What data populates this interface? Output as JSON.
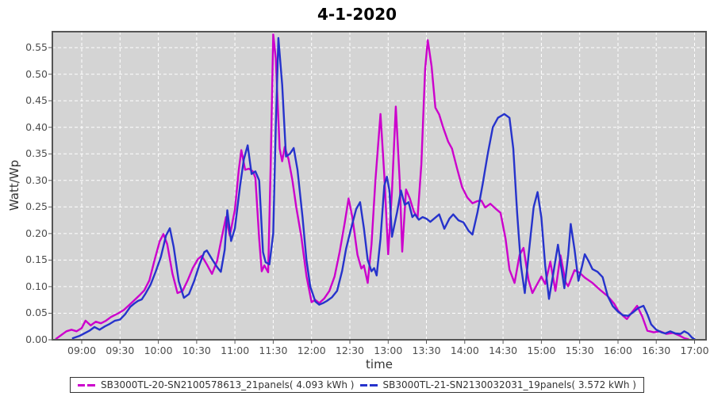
{
  "chart_data": {
    "type": "line",
    "title": "4-1-2020",
    "plot_background": "#d4d4d4",
    "grid": {
      "on": true,
      "color": "#ffffff",
      "style": "dashed"
    },
    "legend_position": "bottom-center",
    "x_axis": {
      "label": "time",
      "tick_labels": [
        "09:00",
        "09:30",
        "10:00",
        "10:30",
        "11:00",
        "11:30",
        "12:00",
        "12:30",
        "13:00",
        "13:30",
        "14:00",
        "14:30",
        "15:00",
        "15:30",
        "16:00",
        "16:30",
        "17:00"
      ],
      "domain_minutes": [
        517,
        1029
      ]
    },
    "y_axis": {
      "label": "Watt/Wp",
      "tick_labels": [
        "0.00",
        "0.05",
        "0.10",
        "0.15",
        "0.20",
        "0.25",
        "0.30",
        "0.35",
        "0.40",
        "0.45",
        "0.50",
        "0.55"
      ],
      "domain": [
        0,
        0.58
      ],
      "tick_step": 0.05
    },
    "series": [
      {
        "label": "SB3000TL-20-SN2100578613_21panels( 4.093 kWh )",
        "name": "SB3000TL-20-SN2100578613_21panels",
        "kwh": 4.093,
        "color": "#cc00cc",
        "points": [
          [
            "08:40",
            0.002
          ],
          [
            "08:44",
            0.009
          ],
          [
            "08:48",
            0.016
          ],
          [
            "08:52",
            0.019
          ],
          [
            "08:56",
            0.016
          ],
          [
            "09:00",
            0.022
          ],
          [
            "09:03",
            0.036
          ],
          [
            "09:07",
            0.027
          ],
          [
            "09:11",
            0.034
          ],
          [
            "09:15",
            0.031
          ],
          [
            "09:19",
            0.036
          ],
          [
            "09:23",
            0.043
          ],
          [
            "09:28",
            0.049
          ],
          [
            "09:33",
            0.056
          ],
          [
            "09:37",
            0.065
          ],
          [
            "09:41",
            0.074
          ],
          [
            "09:45",
            0.083
          ],
          [
            "09:49",
            0.093
          ],
          [
            "09:53",
            0.112
          ],
          [
            "09:57",
            0.15
          ],
          [
            "10:01",
            0.185
          ],
          [
            "10:04",
            0.199
          ],
          [
            "10:07",
            0.18
          ],
          [
            "10:11",
            0.125
          ],
          [
            "10:15",
            0.088
          ],
          [
            "10:19",
            0.092
          ],
          [
            "10:23",
            0.112
          ],
          [
            "10:27",
            0.135
          ],
          [
            "10:31",
            0.152
          ],
          [
            "10:34",
            0.158
          ],
          [
            "10:38",
            0.142
          ],
          [
            "10:42",
            0.124
          ],
          [
            "10:46",
            0.148
          ],
          [
            "10:50",
            0.196
          ],
          [
            "10:53",
            0.231
          ],
          [
            "10:56",
            0.196
          ],
          [
            "11:00",
            0.245
          ],
          [
            "11:03",
            0.32
          ],
          [
            "11:05",
            0.357
          ],
          [
            "11:08",
            0.32
          ],
          [
            "11:11",
            0.322
          ],
          [
            "11:14",
            0.317
          ],
          [
            "11:16",
            0.305
          ],
          [
            "11:19",
            0.19
          ],
          [
            "11:21",
            0.129
          ],
          [
            "11:23",
            0.14
          ],
          [
            "11:26",
            0.127
          ],
          [
            "11:28",
            0.33
          ],
          [
            "11:30",
            0.575
          ],
          [
            "11:32",
            0.53
          ],
          [
            "11:35",
            0.36
          ],
          [
            "11:37",
            0.336
          ],
          [
            "11:39",
            0.363
          ],
          [
            "11:42",
            0.34
          ],
          [
            "11:45",
            0.3
          ],
          [
            "11:48",
            0.25
          ],
          [
            "11:52",
            0.194
          ],
          [
            "11:56",
            0.12
          ],
          [
            "12:00",
            0.071
          ],
          [
            "12:03",
            0.075
          ],
          [
            "12:06",
            0.069
          ],
          [
            "12:10",
            0.078
          ],
          [
            "12:14",
            0.092
          ],
          [
            "12:18",
            0.119
          ],
          [
            "12:22",
            0.165
          ],
          [
            "12:26",
            0.22
          ],
          [
            "12:29",
            0.266
          ],
          [
            "12:32",
            0.23
          ],
          [
            "12:36",
            0.16
          ],
          [
            "12:39",
            0.134
          ],
          [
            "12:41",
            0.14
          ],
          [
            "12:44",
            0.107
          ],
          [
            "12:47",
            0.18
          ],
          [
            "12:50",
            0.3
          ],
          [
            "12:54",
            0.425
          ],
          [
            "12:57",
            0.31
          ],
          [
            "13:00",
            0.161
          ],
          [
            "13:03",
            0.28
          ],
          [
            "13:06",
            0.439
          ],
          [
            "13:09",
            0.3
          ],
          [
            "13:11",
            0.166
          ],
          [
            "13:14",
            0.283
          ],
          [
            "13:17",
            0.266
          ],
          [
            "13:20",
            0.242
          ],
          [
            "13:23",
            0.229
          ],
          [
            "13:26",
            0.33
          ],
          [
            "13:29",
            0.51
          ],
          [
            "13:31",
            0.564
          ],
          [
            "13:34",
            0.515
          ],
          [
            "13:37",
            0.437
          ],
          [
            "13:40",
            0.424
          ],
          [
            "13:43",
            0.4
          ],
          [
            "13:47",
            0.373
          ],
          [
            "13:50",
            0.36
          ],
          [
            "13:54",
            0.322
          ],
          [
            "13:58",
            0.287
          ],
          [
            "14:02",
            0.268
          ],
          [
            "14:06",
            0.257
          ],
          [
            "14:10",
            0.261
          ],
          [
            "14:13",
            0.262
          ],
          [
            "14:16",
            0.249
          ],
          [
            "14:20",
            0.256
          ],
          [
            "14:24",
            0.247
          ],
          [
            "14:28",
            0.239
          ],
          [
            "14:32",
            0.19
          ],
          [
            "14:35",
            0.132
          ],
          [
            "14:39",
            0.107
          ],
          [
            "14:43",
            0.16
          ],
          [
            "14:46",
            0.173
          ],
          [
            "14:50",
            0.112
          ],
          [
            "14:53",
            0.088
          ],
          [
            "14:57",
            0.106
          ],
          [
            "15:00",
            0.119
          ],
          [
            "15:03",
            0.105
          ],
          [
            "15:07",
            0.147
          ],
          [
            "15:11",
            0.092
          ],
          [
            "15:15",
            0.159
          ],
          [
            "15:19",
            0.108
          ],
          [
            "15:21",
            0.101
          ],
          [
            "15:26",
            0.131
          ],
          [
            "15:30",
            0.126
          ],
          [
            "15:34",
            0.117
          ],
          [
            "15:40",
            0.107
          ],
          [
            "15:46",
            0.094
          ],
          [
            "15:52",
            0.082
          ],
          [
            "15:57",
            0.068
          ],
          [
            "16:00",
            0.055
          ],
          [
            "16:04",
            0.045
          ],
          [
            "16:07",
            0.039
          ],
          [
            "16:11",
            0.052
          ],
          [
            "16:15",
            0.064
          ],
          [
            "16:19",
            0.044
          ],
          [
            "16:23",
            0.017
          ],
          [
            "16:28",
            0.014
          ],
          [
            "16:33",
            0.016
          ],
          [
            "16:38",
            0.011
          ],
          [
            "16:43",
            0.013
          ],
          [
            "16:48",
            0.008
          ],
          [
            "16:52",
            0.003
          ],
          [
            "16:55",
            0.001
          ]
        ]
      },
      {
        "label": "SB3000TL-21-SN2130032031_19panels( 3.572 kWh )",
        "name": "SB3000TL-21-SN2130032031_19panels",
        "kwh": 3.572,
        "color": "#2633cc",
        "points": [
          [
            "08:53",
            0.003
          ],
          [
            "08:58",
            0.007
          ],
          [
            "09:02",
            0.012
          ],
          [
            "09:06",
            0.017
          ],
          [
            "09:10",
            0.024
          ],
          [
            "09:14",
            0.019
          ],
          [
            "09:18",
            0.025
          ],
          [
            "09:22",
            0.03
          ],
          [
            "09:26",
            0.036
          ],
          [
            "09:30",
            0.038
          ],
          [
            "09:34",
            0.048
          ],
          [
            "09:38",
            0.062
          ],
          [
            "09:41",
            0.068
          ],
          [
            "09:44",
            0.073
          ],
          [
            "09:47",
            0.076
          ],
          [
            "09:50",
            0.087
          ],
          [
            "09:54",
            0.104
          ],
          [
            "09:58",
            0.129
          ],
          [
            "10:02",
            0.156
          ],
          [
            "10:06",
            0.196
          ],
          [
            "10:09",
            0.21
          ],
          [
            "10:12",
            0.175
          ],
          [
            "10:16",
            0.11
          ],
          [
            "10:20",
            0.079
          ],
          [
            "10:24",
            0.086
          ],
          [
            "10:28",
            0.11
          ],
          [
            "10:32",
            0.14
          ],
          [
            "10:36",
            0.165
          ],
          [
            "10:38",
            0.168
          ],
          [
            "10:42",
            0.152
          ],
          [
            "10:46",
            0.137
          ],
          [
            "10:49",
            0.128
          ],
          [
            "10:52",
            0.17
          ],
          [
            "10:54",
            0.244
          ],
          [
            "10:57",
            0.186
          ],
          [
            "11:00",
            0.21
          ],
          [
            "11:04",
            0.29
          ],
          [
            "11:07",
            0.34
          ],
          [
            "11:10",
            0.366
          ],
          [
            "11:13",
            0.312
          ],
          [
            "11:16",
            0.317
          ],
          [
            "11:19",
            0.3
          ],
          [
            "11:22",
            0.165
          ],
          [
            "11:24",
            0.146
          ],
          [
            "11:27",
            0.142
          ],
          [
            "11:30",
            0.2
          ],
          [
            "11:32",
            0.4
          ],
          [
            "11:34",
            0.568
          ],
          [
            "11:37",
            0.48
          ],
          [
            "11:40",
            0.345
          ],
          [
            "11:43",
            0.35
          ],
          [
            "11:46",
            0.361
          ],
          [
            "11:49",
            0.32
          ],
          [
            "11:53",
            0.23
          ],
          [
            "11:56",
            0.15
          ],
          [
            "11:59",
            0.1
          ],
          [
            "12:03",
            0.072
          ],
          [
            "12:06",
            0.066
          ],
          [
            "12:09",
            0.069
          ],
          [
            "12:12",
            0.073
          ],
          [
            "12:16",
            0.08
          ],
          [
            "12:20",
            0.092
          ],
          [
            "12:24",
            0.13
          ],
          [
            "12:27",
            0.171
          ],
          [
            "12:31",
            0.21
          ],
          [
            "12:35",
            0.246
          ],
          [
            "12:38",
            0.259
          ],
          [
            "12:41",
            0.21
          ],
          [
            "12:44",
            0.15
          ],
          [
            "12:47",
            0.129
          ],
          [
            "12:49",
            0.135
          ],
          [
            "12:51",
            0.121
          ],
          [
            "12:54",
            0.19
          ],
          [
            "12:57",
            0.29
          ],
          [
            "12:59",
            0.307
          ],
          [
            "13:01",
            0.28
          ],
          [
            "13:03",
            0.194
          ],
          [
            "13:07",
            0.24
          ],
          [
            "13:10",
            0.281
          ],
          [
            "13:13",
            0.254
          ],
          [
            "13:16",
            0.259
          ],
          [
            "13:19",
            0.231
          ],
          [
            "13:21",
            0.236
          ],
          [
            "13:24",
            0.226
          ],
          [
            "13:27",
            0.231
          ],
          [
            "13:30",
            0.228
          ],
          [
            "13:33",
            0.222
          ],
          [
            "13:36",
            0.228
          ],
          [
            "13:40",
            0.236
          ],
          [
            "13:44",
            0.209
          ],
          [
            "13:48",
            0.228
          ],
          [
            "13:51",
            0.236
          ],
          [
            "13:55",
            0.225
          ],
          [
            "13:59",
            0.221
          ],
          [
            "14:03",
            0.205
          ],
          [
            "14:06",
            0.198
          ],
          [
            "14:10",
            0.24
          ],
          [
            "14:14",
            0.293
          ],
          [
            "14:18",
            0.35
          ],
          [
            "14:22",
            0.4
          ],
          [
            "14:26",
            0.418
          ],
          [
            "14:31",
            0.425
          ],
          [
            "14:35",
            0.418
          ],
          [
            "14:38",
            0.36
          ],
          [
            "14:41",
            0.24
          ],
          [
            "14:44",
            0.14
          ],
          [
            "14:47",
            0.088
          ],
          [
            "14:50",
            0.16
          ],
          [
            "14:54",
            0.25
          ],
          [
            "14:57",
            0.278
          ],
          [
            "15:00",
            0.23
          ],
          [
            "15:03",
            0.14
          ],
          [
            "15:06",
            0.077
          ],
          [
            "15:09",
            0.12
          ],
          [
            "15:13",
            0.179
          ],
          [
            "15:16",
            0.13
          ],
          [
            "15:18",
            0.097
          ],
          [
            "15:21",
            0.16
          ],
          [
            "15:23",
            0.218
          ],
          [
            "15:26",
            0.17
          ],
          [
            "15:29",
            0.111
          ],
          [
            "15:32",
            0.14
          ],
          [
            "15:34",
            0.161
          ],
          [
            "15:37",
            0.148
          ],
          [
            "15:40",
            0.133
          ],
          [
            "15:44",
            0.128
          ],
          [
            "15:48",
            0.118
          ],
          [
            "15:52",
            0.082
          ],
          [
            "15:56",
            0.063
          ],
          [
            "16:00",
            0.053
          ],
          [
            "16:04",
            0.046
          ],
          [
            "16:08",
            0.045
          ],
          [
            "16:12",
            0.052
          ],
          [
            "16:16",
            0.06
          ],
          [
            "16:20",
            0.064
          ],
          [
            "16:23",
            0.048
          ],
          [
            "16:26",
            0.029
          ],
          [
            "16:30",
            0.019
          ],
          [
            "16:34",
            0.014
          ],
          [
            "16:37",
            0.012
          ],
          [
            "16:41",
            0.016
          ],
          [
            "16:45",
            0.012
          ],
          [
            "16:49",
            0.011
          ],
          [
            "16:52",
            0.016
          ],
          [
            "16:55",
            0.012
          ],
          [
            "16:58",
            0.004
          ],
          [
            "17:00",
            0.001
          ]
        ]
      }
    ]
  }
}
